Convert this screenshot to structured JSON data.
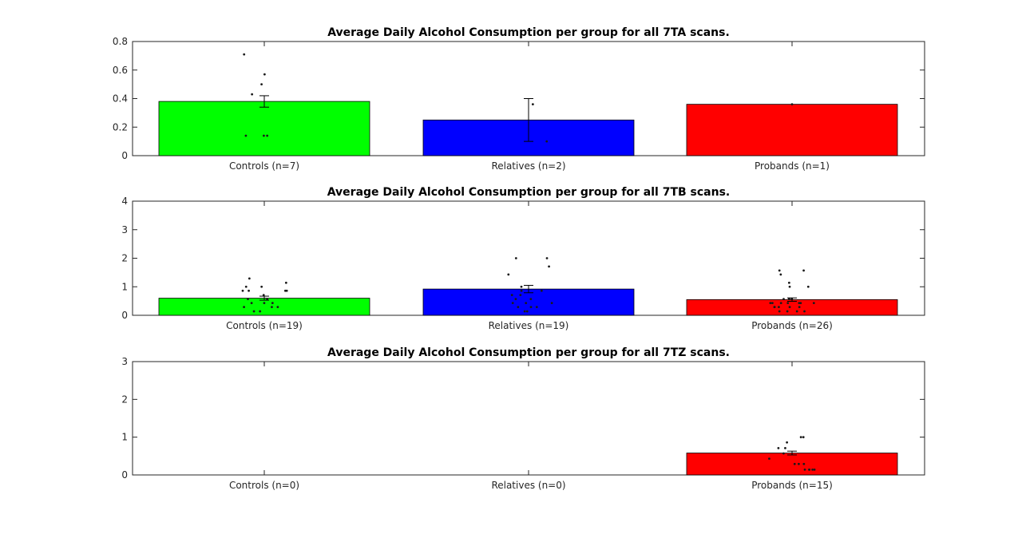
{
  "chart_data": [
    {
      "type": "bar",
      "title": "Average Daily Alcohol Consumption per group for all 7TA scans.",
      "categories": [
        "Controls (n=7)",
        "Relatives (n=2)",
        "Probands (n=1)"
      ],
      "values": [
        0.38,
        0.25,
        0.36
      ],
      "errors": [
        0.04,
        0.15,
        0.0
      ],
      "colors": [
        "#00ff00",
        "#0000ff",
        "#ff0000"
      ],
      "ylim": [
        0,
        0.8
      ],
      "yticks": [
        "0",
        "0.2",
        "0.4",
        "0.6",
        "0.8"
      ],
      "ytick_values": [
        0,
        0.2,
        0.4,
        0.6,
        0.8
      ],
      "points": [
        [
          0.14,
          0.14,
          0.14,
          0.43,
          0.5,
          0.57,
          0.71
        ],
        [
          0.1,
          0.36
        ],
        [
          0.36
        ]
      ]
    },
    {
      "type": "bar",
      "title": "Average Daily Alcohol Consumption per group for all 7TB scans.",
      "categories": [
        "Controls (n=19)",
        "Relatives (n=19)",
        "Probands (n=26)"
      ],
      "values": [
        0.6,
        0.92,
        0.55
      ],
      "errors": [
        0.07,
        0.13,
        0.06
      ],
      "colors": [
        "#00ff00",
        "#0000ff",
        "#ff0000"
      ],
      "ylim": [
        0,
        4
      ],
      "yticks": [
        "0",
        "1",
        "2",
        "3",
        "4"
      ],
      "ytick_values": [
        0,
        1,
        2,
        3,
        4
      ],
      "points": [
        [
          0.14,
          0.14,
          0.29,
          0.29,
          0.29,
          0.43,
          0.43,
          0.43,
          0.57,
          0.57,
          0.71,
          0.86,
          0.86,
          0.86,
          0.86,
          1.0,
          1.0,
          1.14,
          1.29
        ],
        [
          0.14,
          0.29,
          0.29,
          0.29,
          0.43,
          0.43,
          0.43,
          0.57,
          0.57,
          0.71,
          0.71,
          0.86,
          0.86,
          1.0,
          1.43,
          1.71,
          2.0,
          2.0,
          0.14
        ],
        [
          0.14,
          0.14,
          0.14,
          0.14,
          0.29,
          0.29,
          0.29,
          0.29,
          0.43,
          0.43,
          0.43,
          0.43,
          0.43,
          0.43,
          0.57,
          0.57,
          0.57,
          0.57,
          1.0,
          1.0,
          1.14,
          1.43,
          1.57,
          1.57,
          0.29,
          0.43
        ]
      ]
    },
    {
      "type": "bar",
      "title": "Average Daily Alcohol Consumption per group for all 7TZ scans.",
      "categories": [
        "Controls (n=0)",
        "Relatives (n=0)",
        "Probands (n=15)"
      ],
      "values": [
        0,
        0,
        0.58
      ],
      "errors": [
        0,
        0,
        0.05
      ],
      "colors": [
        "#00ff00",
        "#0000ff",
        "#ff0000"
      ],
      "ylim": [
        0,
        3
      ],
      "yticks": [
        "0",
        "1",
        "2",
        "3"
      ],
      "ytick_values": [
        0,
        1,
        2,
        3
      ],
      "points": [
        [],
        [],
        [
          0.14,
          0.14,
          0.14,
          0.14,
          0.14,
          0.29,
          0.29,
          0.29,
          0.43,
          0.57,
          0.71,
          0.71,
          0.86,
          1.0,
          1.0
        ]
      ]
    }
  ]
}
